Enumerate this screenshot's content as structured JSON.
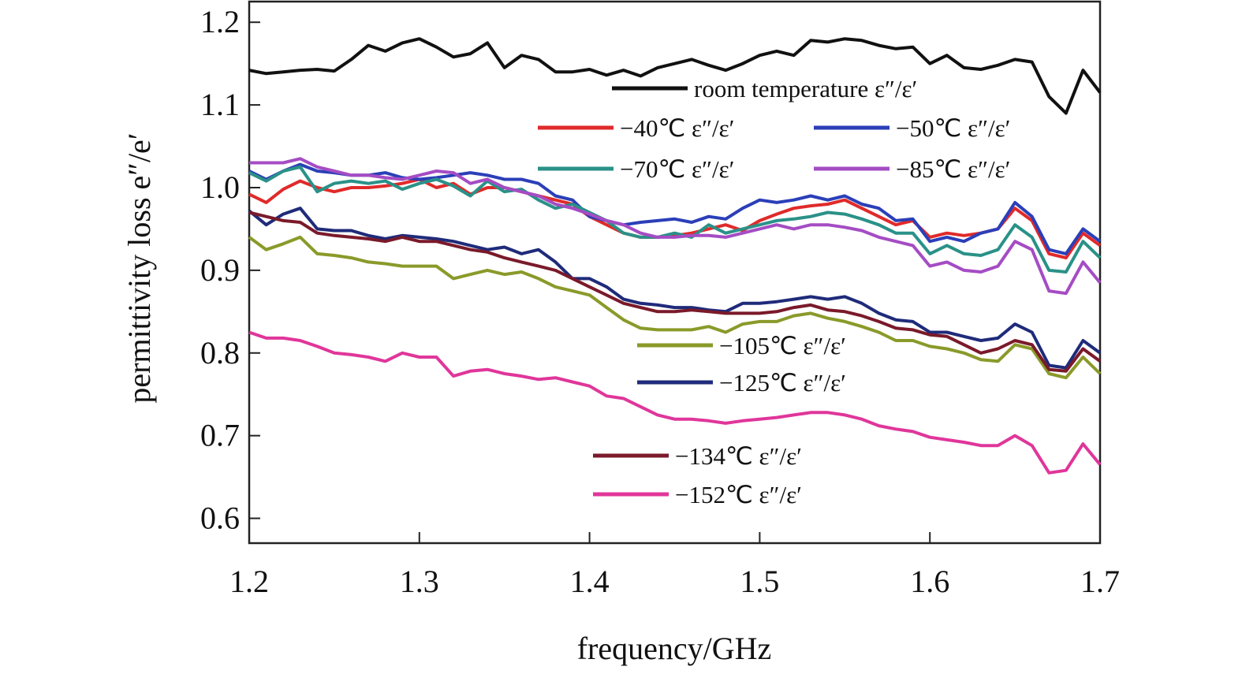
{
  "chart_data": {
    "type": "line",
    "xlabel": "frequency/GHz",
    "ylabel": "permittivity loss e″/e′",
    "xlim": [
      1.2,
      1.7
    ],
    "ylim": [
      0.57,
      1.225
    ],
    "xticks": [
      1.2,
      1.3,
      1.4,
      1.5,
      1.6,
      1.7
    ],
    "yticks": [
      0.6,
      0.7,
      0.8,
      0.9,
      1.0,
      1.1,
      1.2
    ],
    "xtick_labels": [
      "1.2",
      "1.3",
      "1.4",
      "1.5",
      "1.6",
      "1.7"
    ],
    "ytick_labels": [
      "0.6",
      "0.7",
      "0.8",
      "0.9",
      "1.0",
      "1.1",
      "1.2"
    ],
    "grid": false,
    "x": [
      1.2,
      1.21,
      1.22,
      1.23,
      1.24,
      1.25,
      1.26,
      1.27,
      1.28,
      1.29,
      1.3,
      1.31,
      1.32,
      1.33,
      1.34,
      1.35,
      1.36,
      1.37,
      1.38,
      1.39,
      1.4,
      1.41,
      1.42,
      1.43,
      1.44,
      1.45,
      1.46,
      1.47,
      1.48,
      1.49,
      1.5,
      1.51,
      1.52,
      1.53,
      1.54,
      1.55,
      1.56,
      1.57,
      1.58,
      1.59,
      1.6,
      1.61,
      1.62,
      1.63,
      1.64,
      1.65,
      1.66,
      1.67,
      1.68,
      1.69,
      1.7
    ],
    "series": [
      {
        "name": "room temperature ε″/ε′",
        "color": "#111111",
        "values": [
          1.142,
          1.138,
          1.14,
          1.142,
          1.143,
          1.141,
          1.155,
          1.172,
          1.165,
          1.175,
          1.18,
          1.17,
          1.158,
          1.162,
          1.175,
          1.145,
          1.16,
          1.155,
          1.14,
          1.14,
          1.143,
          1.136,
          1.142,
          1.135,
          1.145,
          1.15,
          1.155,
          1.148,
          1.142,
          1.15,
          1.16,
          1.165,
          1.16,
          1.178,
          1.176,
          1.18,
          1.178,
          1.172,
          1.168,
          1.17,
          1.15,
          1.16,
          1.145,
          1.143,
          1.148,
          1.155,
          1.152,
          1.11,
          1.09,
          1.142,
          1.115
        ]
      },
      {
        "name": "−40℃ ε″/ε′",
        "color": "#e02a2a",
        "values": [
          0.992,
          0.982,
          0.998,
          1.008,
          1.0,
          0.995,
          1.0,
          1.0,
          1.002,
          1.005,
          1.01,
          1.0,
          1.005,
          0.992,
          1.0,
          1.0,
          0.995,
          0.99,
          0.985,
          0.98,
          0.965,
          0.955,
          0.945,
          0.94,
          0.94,
          0.942,
          0.945,
          0.95,
          0.955,
          0.948,
          0.96,
          0.968,
          0.975,
          0.978,
          0.98,
          0.985,
          0.975,
          0.965,
          0.955,
          0.96,
          0.94,
          0.945,
          0.942,
          0.945,
          0.95,
          0.975,
          0.96,
          0.92,
          0.915,
          0.945,
          0.93
        ]
      },
      {
        "name": "−50℃ ε″/ε′",
        "color": "#2b3fb8",
        "values": [
          1.02,
          1.01,
          1.02,
          1.028,
          1.02,
          1.018,
          1.015,
          1.015,
          1.018,
          1.012,
          1.01,
          1.012,
          1.015,
          1.018,
          1.015,
          1.01,
          1.01,
          1.005,
          0.99,
          0.985,
          0.965,
          0.96,
          0.955,
          0.958,
          0.96,
          0.962,
          0.958,
          0.965,
          0.962,
          0.975,
          0.985,
          0.982,
          0.985,
          0.99,
          0.985,
          0.99,
          0.98,
          0.975,
          0.96,
          0.962,
          0.935,
          0.94,
          0.935,
          0.945,
          0.95,
          0.982,
          0.965,
          0.925,
          0.92,
          0.95,
          0.935
        ]
      },
      {
        "name": "−70℃ ε″/ε′",
        "color": "#2a9188",
        "values": [
          1.018,
          1.008,
          1.02,
          1.025,
          0.995,
          1.005,
          1.008,
          1.005,
          1.008,
          0.998,
          1.005,
          1.01,
          1.002,
          0.99,
          1.008,
          0.995,
          0.998,
          0.985,
          0.975,
          0.98,
          0.97,
          0.96,
          0.945,
          0.94,
          0.94,
          0.945,
          0.94,
          0.955,
          0.945,
          0.95,
          0.955,
          0.96,
          0.962,
          0.965,
          0.97,
          0.968,
          0.962,
          0.955,
          0.945,
          0.945,
          0.92,
          0.93,
          0.92,
          0.918,
          0.925,
          0.955,
          0.94,
          0.9,
          0.898,
          0.935,
          0.915
        ]
      },
      {
        "name": "−85℃ ε″/ε′",
        "color": "#a54cc4",
        "values": [
          1.03,
          1.03,
          1.03,
          1.035,
          1.025,
          1.02,
          1.015,
          1.015,
          1.012,
          1.01,
          1.015,
          1.02,
          1.018,
          1.005,
          1.01,
          1.0,
          0.995,
          0.99,
          0.98,
          0.975,
          0.968,
          0.96,
          0.955,
          0.945,
          0.94,
          0.94,
          0.942,
          0.942,
          0.94,
          0.945,
          0.95,
          0.955,
          0.95,
          0.955,
          0.955,
          0.952,
          0.948,
          0.94,
          0.935,
          0.93,
          0.905,
          0.91,
          0.9,
          0.898,
          0.905,
          0.935,
          0.925,
          0.875,
          0.872,
          0.91,
          0.885
        ]
      },
      {
        "name": "−105℃ ε″/ε′",
        "color": "#8a9a2a",
        "values": [
          0.94,
          0.925,
          0.932,
          0.94,
          0.92,
          0.918,
          0.915,
          0.91,
          0.908,
          0.905,
          0.905,
          0.905,
          0.89,
          0.895,
          0.9,
          0.895,
          0.898,
          0.89,
          0.88,
          0.875,
          0.87,
          0.855,
          0.84,
          0.83,
          0.828,
          0.828,
          0.828,
          0.832,
          0.825,
          0.835,
          0.838,
          0.838,
          0.845,
          0.848,
          0.842,
          0.838,
          0.832,
          0.825,
          0.815,
          0.815,
          0.808,
          0.805,
          0.8,
          0.792,
          0.79,
          0.81,
          0.805,
          0.775,
          0.77,
          0.795,
          0.775
        ]
      },
      {
        "name": "−125℃ ε″/ε′",
        "color": "#1f2b7a",
        "values": [
          0.972,
          0.955,
          0.968,
          0.975,
          0.95,
          0.948,
          0.948,
          0.942,
          0.938,
          0.942,
          0.94,
          0.938,
          0.935,
          0.93,
          0.925,
          0.928,
          0.92,
          0.925,
          0.91,
          0.89,
          0.89,
          0.88,
          0.865,
          0.86,
          0.858,
          0.855,
          0.855,
          0.852,
          0.85,
          0.86,
          0.86,
          0.862,
          0.865,
          0.868,
          0.865,
          0.868,
          0.86,
          0.848,
          0.84,
          0.838,
          0.825,
          0.825,
          0.82,
          0.815,
          0.818,
          0.835,
          0.825,
          0.785,
          0.782,
          0.815,
          0.8
        ]
      },
      {
        "name": "−134℃ ε″/ε′",
        "color": "#7a1a2a",
        "values": [
          0.97,
          0.965,
          0.96,
          0.958,
          0.945,
          0.942,
          0.94,
          0.938,
          0.935,
          0.94,
          0.935,
          0.935,
          0.93,
          0.925,
          0.922,
          0.915,
          0.91,
          0.905,
          0.9,
          0.89,
          0.88,
          0.87,
          0.86,
          0.855,
          0.85,
          0.85,
          0.852,
          0.85,
          0.848,
          0.848,
          0.848,
          0.85,
          0.855,
          0.858,
          0.852,
          0.85,
          0.845,
          0.838,
          0.83,
          0.828,
          0.822,
          0.82,
          0.81,
          0.8,
          0.805,
          0.815,
          0.81,
          0.78,
          0.778,
          0.805,
          0.79
        ]
      },
      {
        "name": "−152℃ ε″/ε′",
        "color": "#e0369a",
        "values": [
          0.825,
          0.818,
          0.818,
          0.815,
          0.808,
          0.8,
          0.798,
          0.795,
          0.79,
          0.8,
          0.795,
          0.795,
          0.772,
          0.778,
          0.78,
          0.775,
          0.772,
          0.768,
          0.77,
          0.765,
          0.76,
          0.748,
          0.745,
          0.735,
          0.725,
          0.72,
          0.72,
          0.718,
          0.715,
          0.718,
          0.72,
          0.722,
          0.725,
          0.728,
          0.728,
          0.725,
          0.72,
          0.712,
          0.708,
          0.705,
          0.698,
          0.695,
          0.692,
          0.688,
          0.688,
          0.7,
          0.688,
          0.655,
          0.658,
          0.69,
          0.665
        ]
      }
    ],
    "legend": [
      {
        "label": "room temperature ε″/ε′",
        "color": "#111111"
      },
      {
        "label": "−40℃ ε″/ε′",
        "color": "#e02a2a"
      },
      {
        "label": "−50℃ ε″/ε′",
        "color": "#2b3fb8"
      },
      {
        "label": "−70℃ ε″/ε′",
        "color": "#2a9188"
      },
      {
        "label": "−85℃ ε″/ε′",
        "color": "#a54cc4"
      },
      {
        "label": "−105℃ ε″/ε′",
        "color": "#8a9a2a"
      },
      {
        "label": "−125℃ ε″/ε′",
        "color": "#1f2b7a"
      },
      {
        "label": "−134℃ ε″/ε′",
        "color": "#7a1a2a"
      },
      {
        "label": "−152℃ ε″/ε′",
        "color": "#e0369a"
      }
    ]
  }
}
